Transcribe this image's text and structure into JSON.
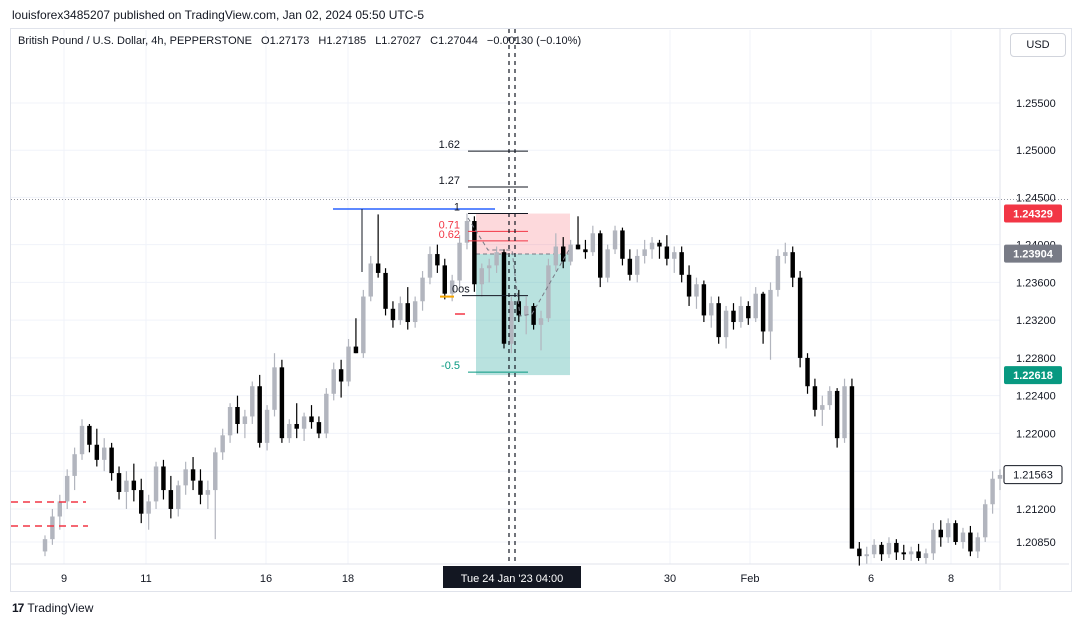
{
  "header": {
    "publisher": "louisforex3485207 published on TradingView.com, Jan 02, 2024 05:50 UTC-5"
  },
  "legend": {
    "symbol": "British Pound / U.S. Dollar, 4h, PEPPERSTONE",
    "open": "O1.27173",
    "high": "H1.27185",
    "low": "L1.27027",
    "close": "C1.27044",
    "change": "−0.00130 (−0.10%)"
  },
  "currency_button": "USD",
  "footer": {
    "brand": "TradingView",
    "logo_text": "17"
  },
  "colors": {
    "up": "#b2b5be",
    "down": "#000000",
    "tp_zone": "#26a69a",
    "sl_zone": "#f7525f",
    "label_red": "#f23645",
    "label_green": "#089981",
    "label_gray": "#787b86",
    "blue_line": "#2962ff"
  },
  "chart_data": {
    "type": "candlestick",
    "title": "British Pound / U.S. Dollar, 4h, PEPPERSTONE",
    "ylim": [
      1.2065,
      1.2572
    ],
    "y_ticks": [
      "1.25500",
      "1.25000",
      "1.24500",
      "1.24000",
      "1.23600",
      "1.23200",
      "1.22800",
      "1.22400",
      "1.22000",
      "1.21600",
      "1.21200",
      "1.20850"
    ],
    "x_ticks": [
      "9",
      "11",
      "16",
      "18",
      "30",
      "Feb",
      "6",
      "8"
    ],
    "crosshair_label": "Tue 24 Jan '23   04:00",
    "price_labels": [
      {
        "text": "1.24329",
        "value": 1.24329,
        "color": "#f23645"
      },
      {
        "text": "1.23904",
        "value": 1.23904,
        "color": "#787b86"
      },
      {
        "text": "1.22618",
        "value": 1.22618,
        "color": "#089981"
      },
      {
        "text": "1.21563",
        "value": 1.21563,
        "color": "#ffffff"
      }
    ],
    "fib_levels": [
      {
        "label": "1.62",
        "value": 1.2499,
        "color": "#131722"
      },
      {
        "label": "1.27",
        "value": 1.2461,
        "color": "#131722"
      },
      {
        "label": "1",
        "value": 1.24329,
        "color": "#131722"
      },
      {
        "label": "0.71",
        "value": 1.2414,
        "color": "#f23645"
      },
      {
        "label": "0.62",
        "value": 1.2404,
        "color": "#f23645"
      },
      {
        "label": "0os",
        "value": 1.2346,
        "color": "#131722"
      },
      {
        "label": "-0.5",
        "value": 1.2265,
        "color": "#089981"
      }
    ],
    "candles": [
      [
        1.2075,
        1.2092,
        1.207,
        1.2088
      ],
      [
        1.2088,
        1.212,
        1.2082,
        1.2112
      ],
      [
        1.2112,
        1.2135,
        1.2098,
        1.2128
      ],
      [
        1.2128,
        1.2162,
        1.212,
        1.2155
      ],
      [
        1.2155,
        1.2185,
        1.214,
        1.2178
      ],
      [
        1.2178,
        1.2215,
        1.2172,
        1.2208
      ],
      [
        1.2208,
        1.221,
        1.218,
        1.2188
      ],
      [
        1.2188,
        1.2205,
        1.2165,
        1.2172
      ],
      [
        1.2172,
        1.2195,
        1.216,
        1.2185
      ],
      [
        1.2185,
        1.219,
        1.215,
        1.2158
      ],
      [
        1.2158,
        1.2165,
        1.213,
        1.2138
      ],
      [
        1.2138,
        1.216,
        1.212,
        1.215
      ],
      [
        1.215,
        1.2168,
        1.2128,
        1.214
      ],
      [
        1.214,
        1.2152,
        1.2105,
        1.2115
      ],
      [
        1.2115,
        1.2135,
        1.2098,
        1.2128
      ],
      [
        1.2128,
        1.217,
        1.212,
        1.2165
      ],
      [
        1.2165,
        1.2172,
        1.213,
        1.214
      ],
      [
        1.214,
        1.2155,
        1.211,
        1.212
      ],
      [
        1.212,
        1.215,
        1.2112,
        1.2145
      ],
      [
        1.2145,
        1.217,
        1.2135,
        1.2162
      ],
      [
        1.2162,
        1.2175,
        1.214,
        1.215
      ],
      [
        1.215,
        1.2162,
        1.2125,
        1.2135
      ],
      [
        1.2135,
        1.215,
        1.212,
        1.214
      ],
      [
        1.214,
        1.2185,
        1.2088,
        1.218
      ],
      [
        1.218,
        1.2205,
        1.2172,
        1.2198
      ],
      [
        1.2198,
        1.2232,
        1.219,
        1.2228
      ],
      [
        1.2228,
        1.224,
        1.22,
        1.221
      ],
      [
        1.221,
        1.2225,
        1.2195,
        1.2218
      ],
      [
        1.2218,
        1.2255,
        1.221,
        1.225
      ],
      [
        1.225,
        1.2262,
        1.2185,
        1.219
      ],
      [
        1.219,
        1.223,
        1.2182,
        1.2225
      ],
      [
        1.2225,
        1.2285,
        1.2218,
        1.227
      ],
      [
        1.227,
        1.2278,
        1.219,
        1.2195
      ],
      [
        1.2195,
        1.2215,
        1.219,
        1.221
      ],
      [
        1.221,
        1.2232,
        1.2195,
        1.2205
      ],
      [
        1.2205,
        1.2222,
        1.2192,
        1.2218
      ],
      [
        1.2218,
        1.223,
        1.2205,
        1.2212
      ],
      [
        1.2212,
        1.2218,
        1.2195,
        1.22
      ],
      [
        1.22,
        1.2248,
        1.2195,
        1.2242
      ],
      [
        1.2242,
        1.2275,
        1.2235,
        1.2268
      ],
      [
        1.2268,
        1.2278,
        1.2238,
        1.2255
      ],
      [
        1.2255,
        1.23,
        1.225,
        1.2292
      ],
      [
        1.2292,
        1.2322,
        1.2285,
        1.2285
      ],
      [
        1.2285,
        1.2352,
        1.228,
        1.2345
      ],
      [
        1.2345,
        1.2388,
        1.234,
        1.238
      ],
      [
        1.238,
        1.2432,
        1.2365,
        1.237
      ],
      [
        1.237,
        1.2375,
        1.2325,
        1.2332
      ],
      [
        1.2332,
        1.234,
        1.2312,
        1.232
      ],
      [
        1.232,
        1.2345,
        1.2315,
        1.2338
      ],
      [
        1.2338,
        1.2355,
        1.231,
        1.2318
      ],
      [
        1.2318,
        1.2345,
        1.2312,
        1.234
      ],
      [
        1.234,
        1.2372,
        1.233,
        1.2365
      ],
      [
        1.2365,
        1.2398,
        1.2358,
        1.239
      ],
      [
        1.239,
        1.24,
        1.237,
        1.2378
      ],
      [
        1.2378,
        1.2385,
        1.2342,
        1.2348
      ],
      [
        1.2348,
        1.2368,
        1.234,
        1.2362
      ],
      [
        1.2362,
        1.241,
        1.2355,
        1.2402
      ],
      [
        1.2402,
        1.2433,
        1.2395,
        1.2425
      ],
      [
        1.2425,
        1.243,
        1.235,
        1.2358
      ],
      [
        1.2358,
        1.238,
        1.2345,
        1.2375
      ],
      [
        1.2375,
        1.2385,
        1.236,
        1.2378
      ],
      [
        1.2378,
        1.2398,
        1.237,
        1.2392
      ],
      [
        1.2392,
        1.2395,
        1.229,
        1.2295
      ],
      [
        1.2295,
        1.2345,
        1.2285,
        1.234
      ],
      [
        1.234,
        1.2352,
        1.2318,
        1.2325
      ],
      [
        1.2325,
        1.2345,
        1.2305,
        1.2335
      ],
      [
        1.2335,
        1.2338,
        1.231,
        1.2315
      ],
      [
        1.2315,
        1.233,
        1.2288,
        1.2322
      ],
      [
        1.2322,
        1.2385,
        1.2318,
        1.2378
      ],
      [
        1.2378,
        1.2412,
        1.2372,
        1.2398
      ],
      [
        1.2398,
        1.2408,
        1.2375,
        1.2382
      ],
      [
        1.2382,
        1.2405,
        1.2378,
        1.24
      ],
      [
        1.24,
        1.243,
        1.2395,
        1.2395
      ],
      [
        1.2395,
        1.2405,
        1.2385,
        1.2392
      ],
      [
        1.2392,
        1.242,
        1.2388,
        1.2412
      ],
      [
        1.2412,
        1.2415,
        1.2355,
        1.2365
      ],
      [
        1.2365,
        1.24,
        1.236,
        1.2395
      ],
      [
        1.2395,
        1.242,
        1.239,
        1.2415
      ],
      [
        1.2415,
        1.2418,
        1.2378,
        1.2385
      ],
      [
        1.2385,
        1.2395,
        1.2362,
        1.2368
      ],
      [
        1.2368,
        1.2395,
        1.236,
        1.2388
      ],
      [
        1.2388,
        1.2405,
        1.238,
        1.2395
      ],
      [
        1.2395,
        1.2408,
        1.2385,
        1.2402
      ],
      [
        1.2402,
        1.2405,
        1.2385,
        1.2398
      ],
      [
        1.2398,
        1.241,
        1.2378,
        1.2385
      ],
      [
        1.2385,
        1.2398,
        1.237,
        1.2392
      ],
      [
        1.2392,
        1.2398,
        1.236,
        1.2368
      ],
      [
        1.2368,
        1.2378,
        1.2335,
        1.2345
      ],
      [
        1.2345,
        1.2365,
        1.2332,
        1.2358
      ],
      [
        1.2358,
        1.2362,
        1.2318,
        1.2325
      ],
      [
        1.2325,
        1.2345,
        1.2312,
        1.2338
      ],
      [
        1.2338,
        1.2345,
        1.2295,
        1.2302
      ],
      [
        1.2302,
        1.2335,
        1.229,
        1.233
      ],
      [
        1.233,
        1.2338,
        1.231,
        1.2318
      ],
      [
        1.2318,
        1.2345,
        1.2312,
        1.2335
      ],
      [
        1.2335,
        1.234,
        1.2315,
        1.2322
      ],
      [
        1.2322,
        1.2355,
        1.2318,
        1.2348
      ],
      [
        1.2348,
        1.235,
        1.2295,
        1.2308
      ],
      [
        1.2308,
        1.236,
        1.2278,
        1.2352
      ],
      [
        1.2352,
        1.2395,
        1.2345,
        1.2388
      ],
      [
        1.2388,
        1.2402,
        1.238,
        1.2392
      ],
      [
        1.2392,
        1.2398,
        1.2355,
        1.2365
      ],
      [
        1.2365,
        1.2372,
        1.227,
        1.228
      ],
      [
        1.228,
        1.2285,
        1.2242,
        1.225
      ],
      [
        1.225,
        1.2258,
        1.2218,
        1.2225
      ],
      [
        1.2225,
        1.224,
        1.2208,
        1.223
      ],
      [
        1.223,
        1.225,
        1.2225,
        1.2245
      ],
      [
        1.2245,
        1.2248,
        1.2185,
        1.2195
      ],
      [
        1.2195,
        1.2258,
        1.219,
        1.225
      ],
      [
        1.225,
        1.2258,
        1.208,
        1.2078
      ],
      [
        1.2078,
        1.2085,
        1.206,
        1.207
      ],
      [
        1.207,
        1.208,
        1.2062,
        1.2072
      ],
      [
        1.2072,
        1.2088,
        1.2068,
        1.2082
      ],
      [
        1.2082,
        1.2085,
        1.2065,
        1.2072
      ],
      [
        1.2072,
        1.209,
        1.2068,
        1.2084
      ],
      [
        1.2084,
        1.2088,
        1.2066,
        1.2074
      ],
      [
        1.2074,
        1.2082,
        1.2066,
        1.2072
      ],
      [
        1.2072,
        1.208,
        1.2065,
        1.2075
      ],
      [
        1.2075,
        1.2083,
        1.2065,
        1.2068
      ],
      [
        1.2068,
        1.2078,
        1.2062,
        1.2073
      ],
      [
        1.2073,
        1.2105,
        1.2066,
        1.2098
      ],
      [
        1.2098,
        1.2108,
        1.208,
        1.209
      ],
      [
        1.209,
        1.211,
        1.2084,
        1.2105
      ],
      [
        1.2105,
        1.2108,
        1.2082,
        1.2085
      ],
      [
        1.2085,
        1.21,
        1.2078,
        1.2095
      ],
      [
        1.2095,
        1.2102,
        1.207,
        1.2075
      ],
      [
        1.2075,
        1.2095,
        1.2068,
        1.209
      ],
      [
        1.209,
        1.213,
        1.2085,
        1.2125
      ],
      [
        1.2125,
        1.216,
        1.2115,
        1.2152
      ],
      [
        1.2152,
        1.2162,
        1.214,
        1.2156
      ]
    ]
  }
}
